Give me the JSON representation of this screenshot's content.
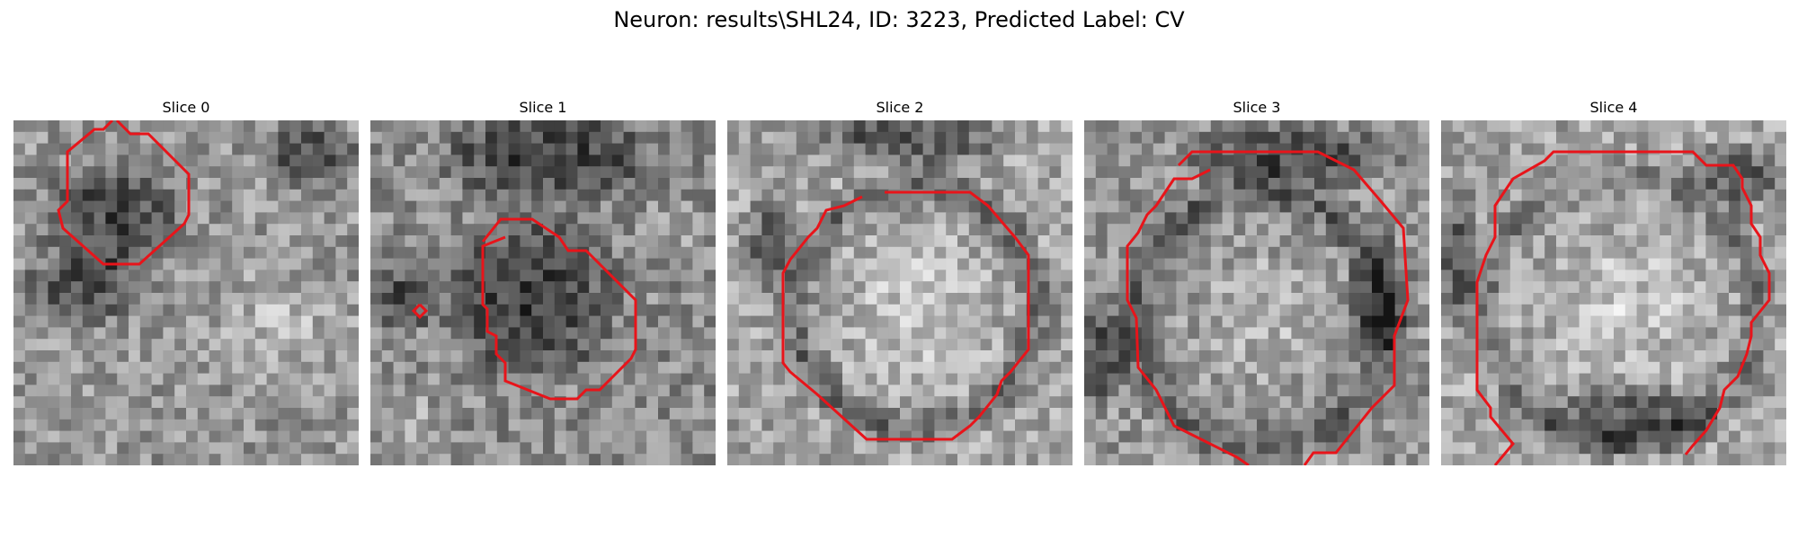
{
  "figure": {
    "title": "Neuron: results\\SHL24, ID: 3223, Predicted Label: CV"
  },
  "slices": [
    {
      "title": "Slice 0"
    },
    {
      "title": "Slice 1"
    },
    {
      "title": "Slice 2"
    },
    {
      "title": "Slice 3"
    },
    {
      "title": "Slice 4"
    }
  ],
  "colors": {
    "contour": "#e8141a",
    "background": "#ffffff"
  }
}
